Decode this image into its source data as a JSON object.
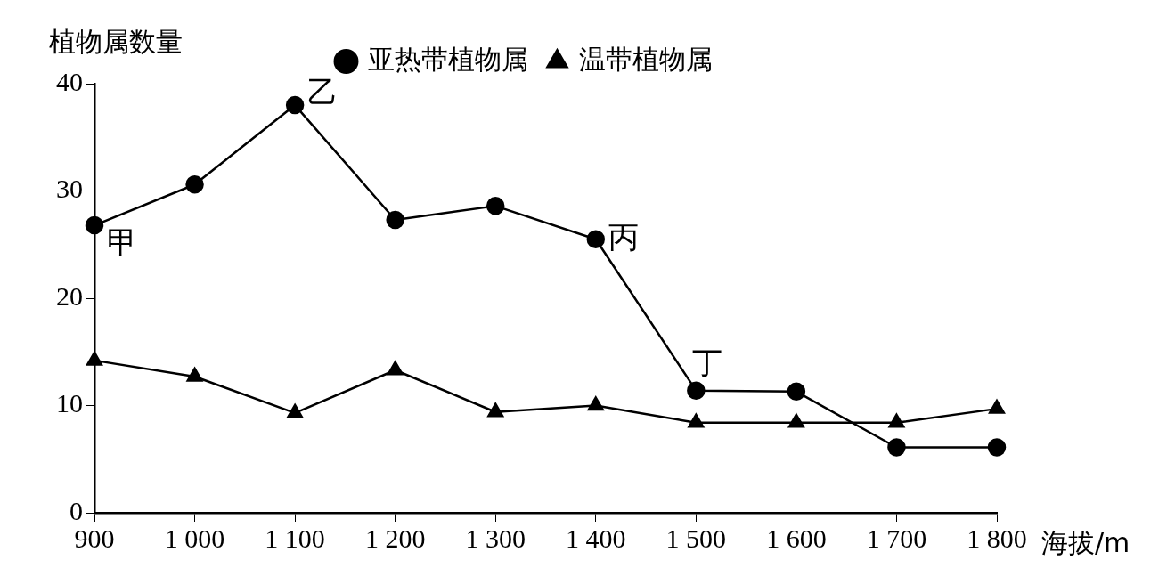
{
  "chart_data": {
    "type": "line",
    "ylabel": "植物属数量",
    "xlabel": "海拔/m",
    "x": [
      900,
      1000,
      1100,
      1200,
      1300,
      1400,
      1500,
      1600,
      1700,
      1800
    ],
    "series": [
      {
        "name": "亚热带植物属",
        "color": "#000000",
        "marker": "circle",
        "values": [
          26.8,
          30.6,
          38,
          27.3,
          28.6,
          25.5,
          11.4,
          11.3,
          6.1,
          6.1
        ]
      },
      {
        "name": "温带植物属",
        "color": "#000000",
        "marker": "triangle",
        "values": [
          14.2,
          12.7,
          9.3,
          13.3,
          9.4,
          10,
          8.4,
          8.4,
          8.4,
          9.7
        ]
      }
    ],
    "xlim": [
      900,
      1800
    ],
    "ylim": [
      0,
      40
    ],
    "xticks": [
      900,
      {
        "value": 1000,
        "label": "1 000"
      },
      {
        "value": 1100,
        "label": "1 100"
      },
      {
        "value": 1200,
        "label": "1 200"
      },
      {
        "value": 1300,
        "label": "1 300"
      },
      {
        "value": 1400,
        "label": "1 400"
      },
      {
        "value": 1500,
        "label": "1 500"
      },
      {
        "value": 1600,
        "label": "1 600"
      },
      {
        "value": 1700,
        "label": "1 700"
      },
      {
        "value": 1800,
        "label": "1 800"
      }
    ],
    "yticks": [
      0,
      10,
      20,
      30,
      40
    ],
    "annotations": [
      {
        "text": "甲",
        "x": 900,
        "y": 26.8
      },
      {
        "text": "乙",
        "x": 1100,
        "y": 38
      },
      {
        "text": "丙",
        "x": 1400,
        "y": 25.5
      },
      {
        "text": "丁",
        "x": 1500,
        "y": 11.4
      }
    ],
    "grid": false,
    "legend": "top",
    "line_style": "solid"
  }
}
